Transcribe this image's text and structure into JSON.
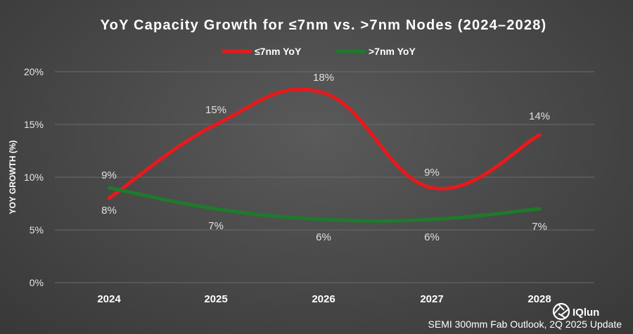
{
  "chart_data": {
    "type": "line",
    "title": "YoY Capacity Growth for ≤7nm vs. >7nm Nodes (2024–2028)",
    "ylabel": "YOY GROWTH (%)",
    "xlabel": "",
    "categories": [
      "2024",
      "2025",
      "2026",
      "2027",
      "2028"
    ],
    "ylim": [
      0,
      20
    ],
    "yticks": [
      0,
      5,
      10,
      15,
      20
    ],
    "ytick_labels": [
      "0%",
      "5%",
      "10%",
      "15%",
      "20%"
    ],
    "grid": true,
    "legend_position": "top",
    "series": [
      {
        "name": "≤7nm YoY",
        "color": "#e8191c",
        "values": [
          8,
          15,
          18,
          9,
          14
        ],
        "labels": [
          "8%",
          "15%",
          "18%",
          "9%",
          "14%"
        ],
        "smooth": true
      },
      {
        "name": ">7nm YoY",
        "color": "#1e7a2c",
        "values": [
          9,
          7,
          6,
          6,
          7
        ],
        "labels": [
          "9%",
          "7%",
          "6%",
          "6%",
          "7%"
        ],
        "smooth": true
      }
    ]
  },
  "footer": {
    "source": "SEMI 300mm Fab Outlook, 2Q 2025 Update",
    "logo": "IQlun"
  }
}
